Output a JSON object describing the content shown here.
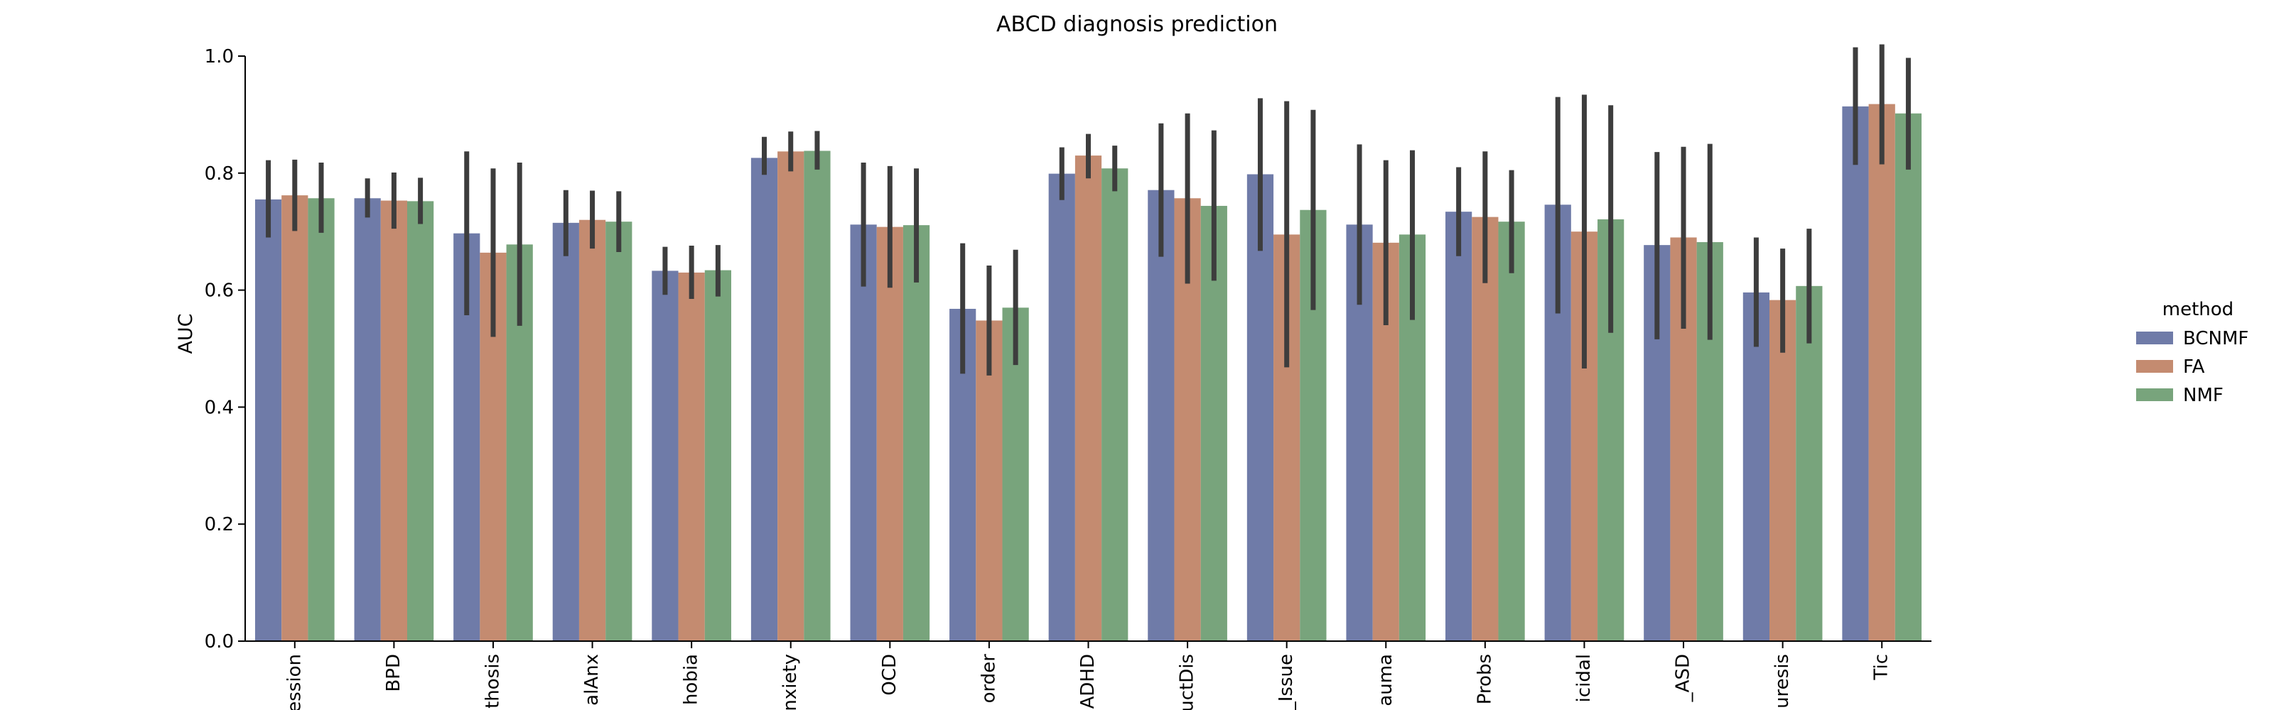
{
  "chart_data": {
    "type": "bar",
    "title": "ABCD diagnosis prediction",
    "xlabel": "",
    "ylabel": "AUC",
    "ylim": [
      0,
      1.0
    ],
    "yticks": [
      "0.0",
      "0.2",
      "0.4",
      "0.6",
      "0.8",
      "1.0"
    ],
    "grid": false,
    "legend_position": "right",
    "categories": [
      "ession",
      "BPD",
      "thosis",
      "alAnx",
      "hobia",
      "nxiety",
      "OCD",
      "order",
      "ADHD",
      "uctDis",
      "_Issue",
      "auma",
      "Probs",
      "icidal",
      "_ASD",
      "uresis",
      "Tic"
    ],
    "legend": {
      "title": "method"
    },
    "series": [
      {
        "name": "BCNMF",
        "color": "#6f7ba8",
        "values": [
          0.755,
          0.757,
          0.697,
          0.715,
          0.633,
          0.826,
          0.712,
          0.568,
          0.799,
          0.771,
          0.798,
          0.712,
          0.734,
          0.746,
          0.677,
          0.596,
          0.914
        ],
        "ci": [
          [
            0.69,
            0.822
          ],
          [
            0.724,
            0.791
          ],
          [
            0.557,
            0.837
          ],
          [
            0.658,
            0.771
          ],
          [
            0.592,
            0.674
          ],
          [
            0.797,
            0.862
          ],
          [
            0.606,
            0.818
          ],
          [
            0.457,
            0.68
          ],
          [
            0.754,
            0.844
          ],
          [
            0.657,
            0.885
          ],
          [
            0.667,
            0.928
          ],
          [
            0.575,
            0.849
          ],
          [
            0.658,
            0.81
          ],
          [
            0.56,
            0.93
          ],
          [
            0.516,
            0.836
          ],
          [
            0.503,
            0.69
          ],
          [
            0.814,
            1.015
          ]
        ]
      },
      {
        "name": "FA",
        "color": "#c48b70",
        "values": [
          0.762,
          0.753,
          0.664,
          0.72,
          0.63,
          0.837,
          0.708,
          0.548,
          0.83,
          0.757,
          0.695,
          0.681,
          0.725,
          0.7,
          0.69,
          0.583,
          0.918
        ],
        "ci": [
          [
            0.701,
            0.823
          ],
          [
            0.705,
            0.801
          ],
          [
            0.52,
            0.808
          ],
          [
            0.671,
            0.77
          ],
          [
            0.585,
            0.676
          ],
          [
            0.803,
            0.871
          ],
          [
            0.604,
            0.812
          ],
          [
            0.454,
            0.642
          ],
          [
            0.791,
            0.867
          ],
          [
            0.611,
            0.902
          ],
          [
            0.468,
            0.923
          ],
          [
            0.54,
            0.822
          ],
          [
            0.612,
            0.837
          ],
          [
            0.466,
            0.934
          ],
          [
            0.534,
            0.845
          ],
          [
            0.493,
            0.671
          ],
          [
            0.815,
            1.02
          ]
        ]
      },
      {
        "name": "NMF",
        "color": "#78a47c",
        "values": [
          0.757,
          0.752,
          0.678,
          0.717,
          0.634,
          0.838,
          0.711,
          0.57,
          0.808,
          0.744,
          0.737,
          0.695,
          0.717,
          0.721,
          0.682,
          0.607,
          0.902
        ],
        "ci": [
          [
            0.698,
            0.818
          ],
          [
            0.713,
            0.792
          ],
          [
            0.539,
            0.818
          ],
          [
            0.665,
            0.769
          ],
          [
            0.589,
            0.677
          ],
          [
            0.806,
            0.872
          ],
          [
            0.613,
            0.808
          ],
          [
            0.472,
            0.669
          ],
          [
            0.769,
            0.847
          ],
          [
            0.616,
            0.873
          ],
          [
            0.566,
            0.908
          ],
          [
            0.549,
            0.839
          ],
          [
            0.629,
            0.805
          ],
          [
            0.527,
            0.916
          ],
          [
            0.515,
            0.85
          ],
          [
            0.509,
            0.705
          ],
          [
            0.806,
            0.997
          ]
        ]
      }
    ]
  }
}
